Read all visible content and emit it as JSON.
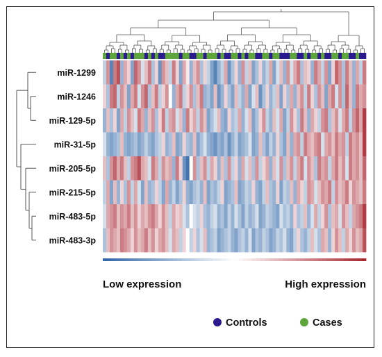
{
  "chart_data": {
    "type": "heatmap",
    "rows": [
      "miR-1299",
      "miR-1246",
      "miR-129-5p",
      "miR-31-5p",
      "miR-205-5p",
      "miR-215-5p",
      "miR-483-5p",
      "miR-483-3p"
    ],
    "n_columns": 76,
    "groups": [
      "Cases",
      "Controls",
      "Cases",
      "Cases",
      "Controls",
      "Cases",
      "Controls",
      "Cases",
      "Controls",
      "Cases",
      "Cases",
      "Cases",
      "Controls",
      "Cases",
      "Controls",
      "Cases",
      "Controls",
      "Controls",
      "Cases",
      "Cases",
      "Cases",
      "Cases",
      "Controls",
      "Cases",
      "Cases",
      "Controls",
      "Controls",
      "Cases",
      "Cases",
      "Controls",
      "Cases",
      "Cases",
      "Cases",
      "Controls",
      "Cases",
      "Controls",
      "Controls",
      "Cases",
      "Cases",
      "Controls",
      "Cases",
      "Controls",
      "Cases",
      "Cases",
      "Controls",
      "Controls",
      "Cases",
      "Cases",
      "Controls",
      "Cases",
      "Cases",
      "Controls",
      "Controls",
      "Controls",
      "Cases",
      "Cases",
      "Controls",
      "Controls",
      "Cases",
      "Controls",
      "Cases",
      "Cases",
      "Controls",
      "Cases",
      "Controls",
      "Controls",
      "Cases",
      "Cases",
      "Controls",
      "Cases",
      "Cases",
      "Controls",
      "Controls",
      "Cases",
      "Controls",
      "Controls"
    ],
    "values": [
      [
        -0.3,
        0.5,
        -0.8,
        0.6,
        0.8,
        -0.5,
        0.4,
        0.2,
        -0.6,
        0.7,
        0.5,
        -0.2,
        0.3,
        0.6,
        -0.4,
        0.2,
        -0.7,
        0.5,
        0.3,
        -0.3,
        0.6,
        0.2,
        -0.6,
        0.4,
        0.1,
        -0.5,
        0.3,
        0.5,
        -0.4,
        0.2,
        -0.3,
        -0.6,
        -0.8,
        -0.5,
        -0.3,
        0.4,
        -0.7,
        -0.4,
        0.2,
        -0.5,
        0.5,
        -0.3,
        0.3,
        -0.6,
        -0.4,
        0.2,
        -0.5,
        -0.3,
        0.4,
        -0.6,
        -0.2,
        0.3,
        -0.5,
        0.5,
        -0.2,
        0.4,
        0.6,
        -0.4,
        0.3,
        0.2,
        -0.5,
        0.6,
        0.4,
        -0.3,
        0.5,
        -0.6,
        0.2,
        0.7,
        0.5,
        -0.4,
        0.6,
        0.3,
        -0.5,
        0.4,
        -0.3,
        0.6
      ],
      [
        0.2,
        -0.4,
        0.6,
        0.7,
        -0.3,
        0.5,
        0.3,
        -0.6,
        0.4,
        0.6,
        -0.2,
        0.5,
        0.7,
        -0.4,
        0.3,
        0.6,
        -0.3,
        0.2,
        0.5,
        0.0,
        -0.5,
        0.4,
        0.6,
        -0.3,
        0.2,
        0.5,
        -0.4,
        0.3,
        0.6,
        -0.5,
        -0.4,
        -0.6,
        0.3,
        -0.7,
        -0.5,
        0.2,
        -0.4,
        -0.6,
        0.3,
        -0.3,
        -0.5,
        0.4,
        -0.6,
        -0.2,
        0.3,
        -0.7,
        -0.4,
        0.2,
        -0.5,
        -0.3,
        0.3,
        -0.6,
        0.2,
        -0.4,
        0.4,
        -0.5,
        0.3,
        0.5,
        -0.3,
        0.6,
        0.2,
        -0.4,
        0.5,
        0.3,
        -0.6,
        0.4,
        0.6,
        -0.2,
        0.5,
        -0.4,
        0.7,
        0.3,
        -0.5,
        0.6,
        0.4,
        0.5
      ],
      [
        -0.5,
        0.3,
        -0.4,
        0.2,
        -0.6,
        0.4,
        -0.3,
        0.5,
        0.3,
        -0.2,
        0.6,
        0.4,
        -0.5,
        0.3,
        0.5,
        -0.4,
        0.2,
        0.6,
        -0.3,
        0.4,
        0.5,
        -0.2,
        0.3,
        -0.5,
        0.6,
        0.2,
        0.4,
        -0.3,
        0.5,
        0.3,
        -0.6,
        -0.4,
        -0.2,
        0.3,
        -0.5,
        -0.6,
        0.2,
        -0.4,
        -0.3,
        0.4,
        -0.5,
        -0.2,
        0.3,
        -0.6,
        -0.4,
        0.2,
        0.5,
        -0.3,
        -0.5,
        0.3,
        -0.2,
        0.4,
        -0.6,
        -0.3,
        0.5,
        0.2,
        -0.4,
        0.6,
        0.3,
        -0.5,
        0.4,
        0.2,
        -0.3,
        0.5,
        0.6,
        -0.4,
        0.3,
        0.5,
        -0.2,
        0.4,
        0.6,
        -0.3,
        0.5,
        0.7,
        0.4,
        0.9
      ],
      [
        -0.2,
        -0.5,
        -0.6,
        -0.5,
        -0.4,
        0.3,
        -0.5,
        -0.6,
        -0.5,
        -0.4,
        -0.6,
        -0.5,
        -0.3,
        -0.5,
        -0.6,
        -0.4,
        -0.3,
        0.2,
        -0.5,
        -0.4,
        0.3,
        -0.6,
        -0.5,
        0.2,
        -0.4,
        -0.5,
        0.3,
        -0.6,
        -0.4,
        -0.2,
        -0.5,
        -0.6,
        -0.7,
        -0.5,
        -0.6,
        -0.4,
        -0.7,
        -0.5,
        -0.3,
        -0.6,
        -0.5,
        -0.4,
        -0.2,
        -0.6,
        -0.5,
        0.3,
        -0.4,
        -0.6,
        -0.3,
        -0.5,
        0.2,
        -0.4,
        -0.6,
        0.3,
        -0.5,
        0.4,
        0.5,
        -0.3,
        0.6,
        0.4,
        0.3,
        0.5,
        0.6,
        -0.2,
        0.4,
        0.5,
        0.3,
        0.6,
        0.4,
        0.5,
        -0.3,
        0.6,
        0.4,
        0.5,
        0.3,
        0.9
      ],
      [
        0.3,
        -0.4,
        0.5,
        0.7,
        0.4,
        0.6,
        0.3,
        -0.3,
        0.5,
        0.6,
        0.8,
        0.4,
        0.3,
        -0.2,
        0.6,
        0.4,
        -0.3,
        0.5,
        0.3,
        0.4,
        -0.5,
        0.6,
        0.2,
        -0.7,
        -0.9,
        0.0,
        0.5,
        -0.4,
        0.3,
        0.5,
        -0.3,
        0.4,
        0.2,
        -0.5,
        0.3,
        -0.4,
        0.5,
        -0.3,
        0.2,
        -0.5,
        0.4,
        -0.2,
        0.3,
        -0.4,
        0.5,
        -0.3,
        0.2,
        0.4,
        -0.5,
        0.3,
        -0.2,
        0.5,
        -0.4,
        0.3,
        0.5,
        -0.3,
        0.4,
        0.6,
        -0.2,
        0.5,
        0.3,
        -0.4,
        0.6,
        0.4,
        0.5,
        -0.3,
        0.4,
        0.6,
        0.3,
        0.5,
        -0.2,
        0.6,
        0.4,
        0.5,
        0.3,
        0.7
      ],
      [
        -0.3,
        0.4,
        -0.6,
        0.3,
        -0.5,
        0.2,
        -0.4,
        0.5,
        -0.3,
        0.4,
        -0.2,
        -0.6,
        0.3,
        -0.5,
        -0.4,
        0.2,
        -0.3,
        -0.6,
        0.4,
        -0.5,
        -0.3,
        -0.6,
        -0.4,
        0.2,
        -0.5,
        -0.6,
        -0.4,
        -0.3,
        -0.5,
        0.3,
        -0.6,
        -0.4,
        -0.5,
        -0.3,
        0.2,
        -0.6,
        -0.5,
        -0.4,
        0.3,
        -0.6,
        -0.5,
        -0.3,
        -0.4,
        0.2,
        -0.5,
        -0.6,
        -0.3,
        0.3,
        -0.4,
        -0.5,
        0.2,
        -0.6,
        -0.3,
        -0.4,
        0.3,
        -0.5,
        0.4,
        0.2,
        -0.3,
        0.5,
        0.4,
        -0.2,
        0.3,
        0.5,
        0.4,
        0.6,
        -0.3,
        0.5,
        0.3,
        0.4,
        0.6,
        0.2,
        0.5,
        0.4,
        0.3,
        0.6
      ],
      [
        -0.2,
        0.4,
        0.5,
        0.6,
        0.3,
        0.5,
        0.4,
        0.6,
        0.3,
        0.5,
        0.2,
        0.4,
        0.3,
        0.5,
        0.6,
        0.4,
        0.2,
        0.5,
        0.3,
        -0.3,
        0.4,
        0.2,
        0.3,
        -0.2,
        -0.4,
        0.0,
        -0.2,
        -0.3,
        0.2,
        -0.4,
        -0.5,
        -0.3,
        -0.2,
        -0.5,
        -0.4,
        -0.6,
        -0.3,
        -0.5,
        -0.2,
        -0.4,
        -0.6,
        -0.3,
        -0.5,
        -0.4,
        -0.2,
        -0.6,
        -0.5,
        -0.3,
        -0.4,
        -0.5,
        -0.6,
        -0.2,
        -0.4,
        -0.3,
        -0.5,
        0.2,
        -0.4,
        -0.3,
        0.3,
        -0.5,
        -0.2,
        0.4,
        -0.3,
        0.2,
        0.5,
        -0.4,
        0.3,
        0.4,
        -0.2,
        0.5,
        0.3,
        -0.3,
        0.4,
        0.5,
        0.6,
        0.9
      ],
      [
        -0.4,
        0.3,
        0.5,
        0.4,
        0.3,
        0.6,
        0.5,
        0.4,
        0.2,
        0.5,
        0.3,
        0.4,
        0.6,
        0.3,
        0.5,
        0.2,
        0.4,
        0.5,
        0.3,
        -0.2,
        0.4,
        0.3,
        -0.3,
        0.2,
        0.0,
        -0.3,
        0.2,
        -0.4,
        -0.2,
        0.3,
        -0.5,
        -0.4,
        -0.3,
        -0.6,
        -0.5,
        -0.4,
        -0.3,
        -0.5,
        -0.6,
        -0.4,
        -0.3,
        -0.5,
        -0.2,
        -0.6,
        -0.4,
        -0.5,
        -0.3,
        -0.4,
        -0.6,
        -0.5,
        -0.3,
        -0.4,
        -0.2,
        -0.5,
        -0.6,
        -0.3,
        0.2,
        -0.4,
        -0.5,
        -0.3,
        0.3,
        -0.2,
        -0.4,
        0.4,
        0.3,
        -0.5,
        0.2,
        0.5,
        0.3,
        -0.3,
        0.4,
        0.2,
        0.5,
        0.3,
        0.4,
        0.8
      ]
    ],
    "color_scale": {
      "low_label": "Low expression",
      "high_label": "High expression",
      "low_color": "#2f65a6",
      "mid_color": "#ffffff",
      "high_color": "#a82530"
    },
    "legend": [
      {
        "label": "Controls",
        "color": "#2b1a8f"
      },
      {
        "label": "Cases",
        "color": "#5ea63b"
      }
    ],
    "dendrogram_columns": true,
    "dendrogram_rows": true
  }
}
